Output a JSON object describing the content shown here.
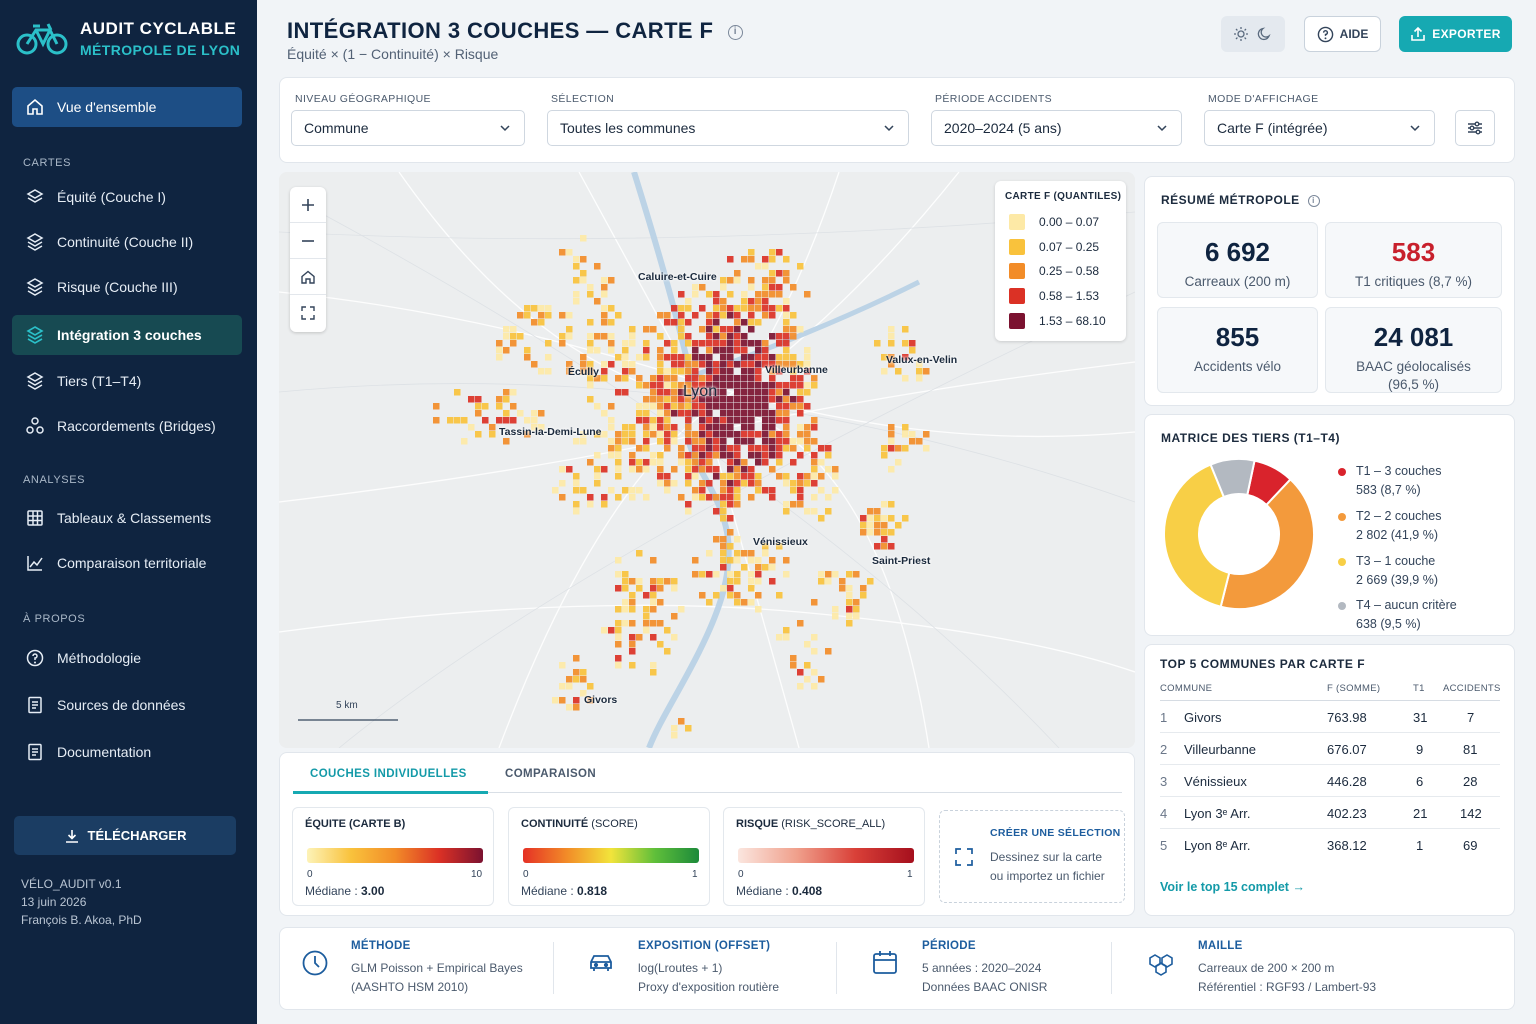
{
  "app": {
    "title": "AUDIT CYCLABLE",
    "subtitle": "MÉTROPOLE DE LYON",
    "accent": "#16a9b2",
    "navy": "#0f2440"
  },
  "sidebar": {
    "home": "Vue d'ensemble",
    "sections": {
      "cartes": "CARTES",
      "analyses": "ANALYSES",
      "apropos": "À PROPOS"
    },
    "cartes": [
      "Équité (Couche I)",
      "Continuité (Couche II)",
      "Risque (Couche III)",
      "Intégration 3 couches",
      "Tiers (T1–T4)",
      "Raccordements (Bridges)"
    ],
    "analyses": [
      "Tableaux & Classements",
      "Comparaison territoriale"
    ],
    "apropos": [
      "Méthodologie",
      "Sources de données",
      "Documentation"
    ],
    "download": "TÉLÉCHARGER",
    "footer": [
      "VÉLO_AUDIT v0.1",
      "13 juin 2026",
      "François B. Akoa, PhD"
    ]
  },
  "header": {
    "title": "INTÉGRATION 3 COUCHES — CARTE F",
    "subtitle": "Équité × (1 − Continuité) × Risque",
    "help": "AIDE",
    "export": "EXPORTER"
  },
  "filters": {
    "geo": {
      "label": "NIVEAU GÉOGRAPHIQUE",
      "value": "Commune"
    },
    "selection": {
      "label": "SÉLECTION",
      "value": "Toutes les communes"
    },
    "period": {
      "label": "PÉRIODE ACCIDENTS",
      "value": "2020–2024 (5 ans)"
    },
    "mode": {
      "label": "MODE D'AFFICHAGE",
      "value": "Carte F (intégrée)"
    }
  },
  "map": {
    "legend_title": "CARTE F (QUANTILES)",
    "legend": [
      {
        "range": "0.00  –  0.07",
        "color": "#fde9a6"
      },
      {
        "range": "0.07  –  0.25",
        "color": "#f9c23c"
      },
      {
        "range": "0.25  –  0.58",
        "color": "#f28c28"
      },
      {
        "range": "0.58  –  1.53",
        "color": "#db3125"
      },
      {
        "range": "1.53  –  68.10",
        "color": "#7b1230"
      }
    ],
    "places": [
      "Caluire-et-Cuire",
      "Écully",
      "Lyon",
      "Villeurbanne",
      "Valux-en-Velin",
      "Tassin-la-Demi-Lune",
      "Vénissieux",
      "Saint-Priest",
      "Givors"
    ],
    "scale": "5 km"
  },
  "summary": {
    "title": "RÉSUMÉ MÉTROPOLE",
    "stats": [
      {
        "value": "6 692",
        "label": "Carreaux (200 m)"
      },
      {
        "value": "583",
        "label": "T1 critiques (8,7 %)",
        "color": "#c8202c"
      },
      {
        "value": "855",
        "label": "Accidents vélo"
      },
      {
        "value": "24 081",
        "label": "BAAC géolocalisés (96,5 %)"
      }
    ]
  },
  "tiers": {
    "title": "MATRICE DES TIERS (T1–T4)",
    "items": [
      {
        "name": "T1 – 3 couches",
        "detail": "583 (8,7 %)",
        "pct": 8.7,
        "color": "#d9232c"
      },
      {
        "name": "T2 – 2 couches",
        "detail": "2 802 (41,9 %)",
        "pct": 41.9,
        "color": "#f39a3c"
      },
      {
        "name": "T3 – 1 couche",
        "detail": "2 669 (39,9 %)",
        "pct": 39.9,
        "color": "#f8cf46"
      },
      {
        "name": "T4 – aucun critère",
        "detail": "638 (9,5 %)",
        "pct": 9.5,
        "color": "#b3b9c1"
      }
    ]
  },
  "top5": {
    "title": "TOP 5 COMMUNES PAR CARTE F",
    "headers": [
      "COMMUNE",
      "F (SOMME)",
      "T1",
      "ACCIDENTS"
    ],
    "rows": [
      {
        "rank": "1",
        "name": "Givors",
        "f": "763.98",
        "t1": "31",
        "acc": "7"
      },
      {
        "rank": "2",
        "name": "Villeurbanne",
        "f": "676.07",
        "t1": "9",
        "acc": "81"
      },
      {
        "rank": "3",
        "name": "Vénissieux",
        "f": "446.28",
        "t1": "6",
        "acc": "28"
      },
      {
        "rank": "4",
        "name": "Lyon 3ᵉ Arr.",
        "f": "402.23",
        "t1": "21",
        "acc": "142"
      },
      {
        "rank": "5",
        "name": "Lyon 8ᵉ Arr.",
        "f": "368.12",
        "t1": "1",
        "acc": "69"
      }
    ],
    "link": "Voir le top 15 complet"
  },
  "layers": {
    "tabs": [
      "COUCHES INDIVIDUELLES",
      "COMPARAISON"
    ],
    "cards": [
      {
        "title": "ÉQUITE",
        "sub": "(CARTE B)",
        "min": "0",
        "max": "10",
        "median_label": "Médiane : ",
        "median": "3.00"
      },
      {
        "title": "CONTINUITÉ",
        "sub": "(SCORE)",
        "min": "0",
        "max": "1",
        "median_label": "Médiane : ",
        "median": "0.818"
      },
      {
        "title": "RISQUE",
        "sub": "(RISK_SCORE_ALL)",
        "min": "0",
        "max": "1",
        "median_label": "Médiane : ",
        "median": "0.408"
      }
    ],
    "selection": {
      "title": "CRÉER UNE SÉLECTION",
      "l1": "Dessinez sur la carte",
      "l2": "ou importez un fichier"
    }
  },
  "bottom": [
    {
      "title": "MÉTHODE",
      "l1": "GLM Poisson + Empirical Bayes",
      "l2": "(AASHTO HSM 2010)"
    },
    {
      "title": "EXPOSITION (OFFSET)",
      "l1": "log(Lroutes + 1)",
      "l2": "Proxy d'exposition routière"
    },
    {
      "title": "PÉRIODE",
      "l1": "5 années : 2020–2024",
      "l2": "Données BAAC ONISR"
    },
    {
      "title": "MAILLE",
      "l1": "Carreaux de 200 × 200 m",
      "l2": "Référentiel : RGF93 / Lambert-93"
    }
  ]
}
